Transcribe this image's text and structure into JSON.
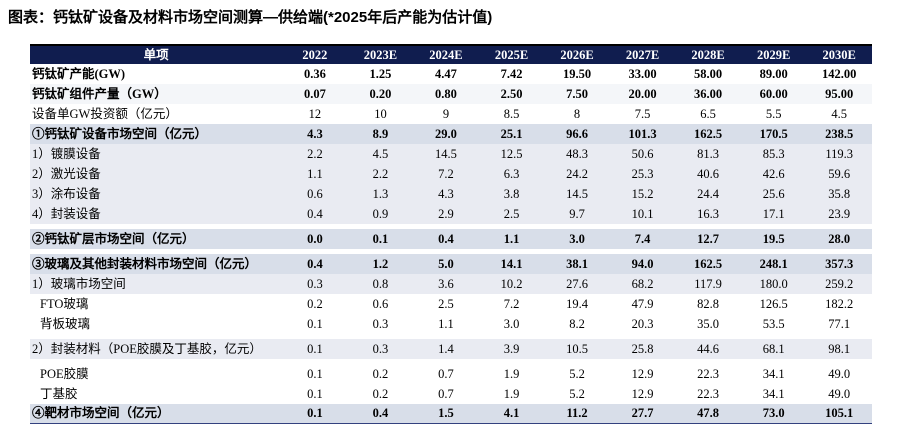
{
  "title": "图表：钙钛矿设备及材料市场空间测算—供给端(*2025年后产能为估计值)",
  "colors": {
    "header_bg": "#101d4f",
    "header_text": "#ffffff",
    "summary_row_bg": "#d8dee9",
    "detail_row_bg": "#e9ebf2",
    "alt_row_bg": "#f4f6f9",
    "bottom_border": "#33417f",
    "title_text": "#000000"
  },
  "chart_data": {
    "type": "table",
    "title": "钙钛矿设备及材料市场空间测算—供给端(*2025年后产能为估计值)",
    "columns": [
      "单项",
      "2022",
      "2023E",
      "2024E",
      "2025E",
      "2026E",
      "2027E",
      "2028E",
      "2029E",
      "2030E"
    ],
    "rows": [
      {
        "label": "钙钛矿产能(GW)",
        "values": [
          "0.36",
          "1.25",
          "4.47",
          "7.42",
          "19.50",
          "33.00",
          "58.00",
          "89.00",
          "142.00"
        ],
        "style": "bold",
        "bg": "white",
        "indent": false,
        "gap_after": false
      },
      {
        "label": "钙钛矿组件产量（GW）",
        "values": [
          "0.07",
          "0.20",
          "0.80",
          "2.50",
          "7.50",
          "20.00",
          "36.00",
          "60.00",
          "95.00"
        ],
        "style": "bold",
        "bg": "alt",
        "indent": false,
        "gap_after": false
      },
      {
        "label": "设备单GW投资额（亿元）",
        "values": [
          "12",
          "10",
          "9",
          "8.5",
          "8",
          "7.5",
          "6.5",
          "5.5",
          "4.5"
        ],
        "style": "normal",
        "bg": "white",
        "indent": false,
        "gap_after": false
      },
      {
        "label": "①钙钛矿设备市场空间（亿元）",
        "values": [
          "4.3",
          "8.9",
          "29.0",
          "25.1",
          "96.6",
          "101.3",
          "162.5",
          "170.5",
          "238.5"
        ],
        "style": "bold",
        "bg": "summary",
        "indent": false,
        "gap_after": false
      },
      {
        "label": "1）镀膜设备",
        "values": [
          "2.2",
          "4.5",
          "14.5",
          "12.5",
          "48.3",
          "50.6",
          "81.3",
          "85.3",
          "119.3"
        ],
        "style": "normal",
        "bg": "detail",
        "indent": false,
        "gap_after": false
      },
      {
        "label": "2）激光设备",
        "values": [
          "1.1",
          "2.2",
          "7.2",
          "6.3",
          "24.2",
          "25.3",
          "40.6",
          "42.6",
          "59.6"
        ],
        "style": "normal",
        "bg": "detail",
        "indent": false,
        "gap_after": false
      },
      {
        "label": "3）涂布设备",
        "values": [
          "0.6",
          "1.3",
          "4.3",
          "3.8",
          "14.5",
          "15.2",
          "24.4",
          "25.6",
          "35.8"
        ],
        "style": "normal",
        "bg": "detail",
        "indent": false,
        "gap_after": false
      },
      {
        "label": "4）封装设备",
        "values": [
          "0.4",
          "0.9",
          "2.9",
          "2.5",
          "9.7",
          "10.1",
          "16.3",
          "17.1",
          "23.9"
        ],
        "style": "normal",
        "bg": "detail",
        "indent": false,
        "gap_after": true
      },
      {
        "label": "②钙钛矿层市场空间（亿元）",
        "values": [
          "0.0",
          "0.1",
          "0.4",
          "1.1",
          "3.0",
          "7.4",
          "12.7",
          "19.5",
          "28.0"
        ],
        "style": "bold",
        "bg": "summary",
        "indent": false,
        "gap_after": true
      },
      {
        "label": "③玻璃及其他封装材料市场空间（亿元）",
        "values": [
          "0.4",
          "1.2",
          "5.0",
          "14.1",
          "38.1",
          "94.0",
          "162.5",
          "248.1",
          "357.3"
        ],
        "style": "bold",
        "bg": "summary",
        "indent": false,
        "gap_after": false
      },
      {
        "label": "1）玻璃市场空间",
        "values": [
          "0.3",
          "0.8",
          "3.6",
          "10.2",
          "27.6",
          "68.2",
          "117.9",
          "180.0",
          "259.2"
        ],
        "style": "normal",
        "bg": "detail",
        "indent": false,
        "gap_after": false
      },
      {
        "label": "FTO玻璃",
        "values": [
          "0.2",
          "0.6",
          "2.5",
          "7.2",
          "19.4",
          "47.9",
          "82.8",
          "126.5",
          "182.2"
        ],
        "style": "normal",
        "bg": "white",
        "indent": true,
        "gap_after": false
      },
      {
        "label": "背板玻璃",
        "values": [
          "0.1",
          "0.3",
          "1.1",
          "3.0",
          "8.2",
          "20.3",
          "35.0",
          "53.5",
          "77.1"
        ],
        "style": "normal",
        "bg": "white",
        "indent": true,
        "gap_after": true
      },
      {
        "label": "2）封装材料（POE胶膜及丁基胶，亿元）",
        "values": [
          "0.1",
          "0.3",
          "1.4",
          "3.9",
          "10.5",
          "25.8",
          "44.6",
          "68.1",
          "98.1"
        ],
        "style": "normal",
        "bg": "detail",
        "indent": false,
        "gap_after": true
      },
      {
        "label": "POE胶膜",
        "values": [
          "0.1",
          "0.2",
          "0.7",
          "1.9",
          "5.2",
          "12.9",
          "22.3",
          "34.1",
          "49.0"
        ],
        "style": "normal",
        "bg": "white",
        "indent": true,
        "gap_after": false
      },
      {
        "label": "丁基胶",
        "values": [
          "0.1",
          "0.2",
          "0.7",
          "1.9",
          "5.2",
          "12.9",
          "22.3",
          "34.1",
          "49.0"
        ],
        "style": "normal",
        "bg": "white",
        "indent": true,
        "gap_after": false
      },
      {
        "label": "④靶材市场空间（亿元）",
        "values": [
          "0.1",
          "0.4",
          "1.5",
          "4.1",
          "11.2",
          "27.7",
          "47.8",
          "73.0",
          "105.1"
        ],
        "style": "bold",
        "bg": "summary",
        "indent": false,
        "gap_after": false
      }
    ]
  }
}
